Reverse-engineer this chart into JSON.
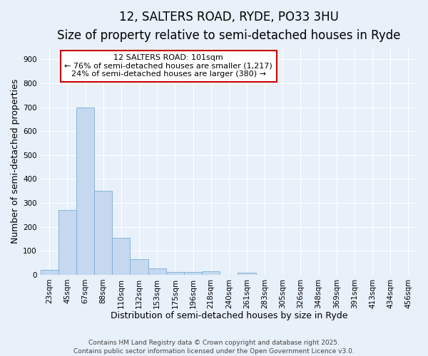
{
  "title1": "12, SALTERS ROAD, RYDE, PO33 3HU",
  "title2": "Size of property relative to semi-detached houses in Ryde",
  "xlabel": "Distribution of semi-detached houses by size in Ryde",
  "ylabel": "Number of semi-detached properties",
  "bin_labels": [
    "23sqm",
    "45sqm",
    "67sqm",
    "88sqm",
    "110sqm",
    "132sqm",
    "153sqm",
    "175sqm",
    "196sqm",
    "218sqm",
    "240sqm",
    "261sqm",
    "283sqm",
    "305sqm",
    "326sqm",
    "348sqm",
    "369sqm",
    "391sqm",
    "413sqm",
    "434sqm",
    "456sqm"
  ],
  "bar_heights": [
    20,
    270,
    700,
    350,
    155,
    65,
    25,
    12,
    12,
    13,
    0,
    8,
    0,
    0,
    0,
    0,
    0,
    0,
    0,
    0,
    0
  ],
  "bar_color": "#c5d8f0",
  "bar_edge_color": "#7bafd4",
  "bg_color": "#e8f0fa",
  "grid_color": "#ffffff",
  "annotation_line1": "12 SALTERS ROAD: 101sqm",
  "annotation_line2": "← 76% of semi-detached houses are smaller (1,217)",
  "annotation_line3": "24% of semi-detached houses are larger (380) →",
  "annotation_box_color": "#ffffff",
  "annotation_box_edge": "#cc0000",
  "ylim": [
    0,
    950
  ],
  "yticks": [
    0,
    100,
    200,
    300,
    400,
    500,
    600,
    700,
    800,
    900
  ],
  "footer": "Contains HM Land Registry data © Crown copyright and database right 2025.\nContains public sector information licensed under the Open Government Licence v3.0.",
  "title1_fontsize": 12,
  "title2_fontsize": 10,
  "axis_fontsize": 9,
  "tick_fontsize": 7.5,
  "footer_fontsize": 6.5,
  "annot_fontsize": 8
}
